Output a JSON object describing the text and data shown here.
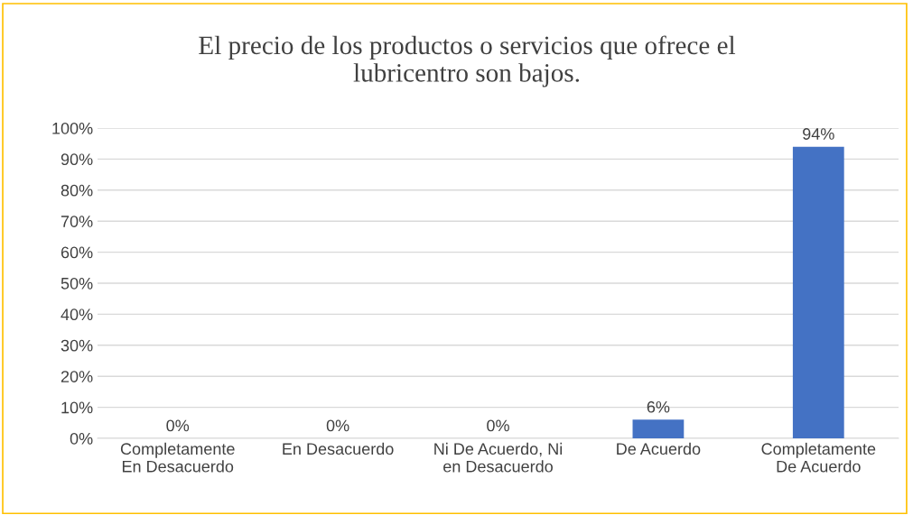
{
  "chart_data": {
    "type": "bar",
    "title": "El precio de los productos o servicios que ofrece el\nlubricentro son bajos.",
    "categories": [
      "Completamente\nEn Desacuerdo",
      "En Desacuerdo",
      "Ni De Acuerdo, Ni\nen Desacuerdo",
      "De Acuerdo",
      "Completamente\nDe Acuerdo"
    ],
    "values": [
      0,
      0,
      0,
      6,
      94
    ],
    "value_labels": [
      "0%",
      "0%",
      "0%",
      "6%",
      "94%"
    ],
    "color": "#4472c4",
    "ylim": [
      0,
      100
    ],
    "yticks": [
      {
        "value": 0,
        "label": "0%"
      },
      {
        "value": 10,
        "label": "10%"
      },
      {
        "value": 20,
        "label": "20%"
      },
      {
        "value": 30,
        "label": "30%"
      },
      {
        "value": 40,
        "label": "40%"
      },
      {
        "value": 50,
        "label": "50%"
      },
      {
        "value": 60,
        "label": "60%"
      },
      {
        "value": 70,
        "label": "70%"
      },
      {
        "value": 80,
        "label": "80%"
      },
      {
        "value": 90,
        "label": "90%"
      },
      {
        "value": 100,
        "label": "100%"
      }
    ],
    "grid": "y",
    "legend": false
  }
}
